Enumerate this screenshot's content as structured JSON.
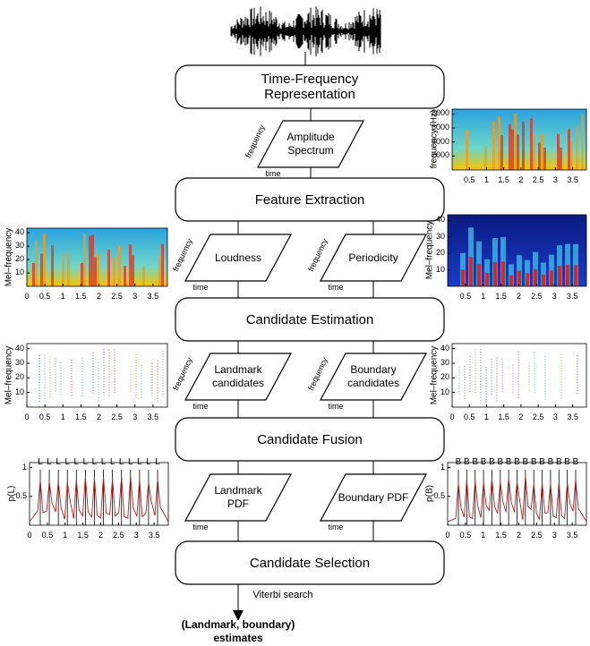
{
  "stages": [
    "Time-Frequency Representation",
    "Feature Extraction",
    "Candidate Estimation",
    "Candidate Fusion",
    "Candidate Selection"
  ],
  "features": [
    [
      {
        "label": "Amplitude Spectrum",
        "y_axis": "frequency",
        "x_axis": "time"
      }
    ],
    [
      {
        "label": "Loudness",
        "y_axis": "frequency",
        "x_axis": "time"
      },
      {
        "label": "Periodicity",
        "y_axis": "frequency",
        "x_axis": "time"
      }
    ],
    [
      {
        "label": "Landmark candidates",
        "y_axis": "frequency",
        "x_axis": "time"
      },
      {
        "label": "Boundary candidates",
        "y_axis": "frequency",
        "x_axis": "time"
      }
    ],
    [
      {
        "label": "Landmark PDF",
        "x_axis": "time"
      },
      {
        "label": "Boundary PDF",
        "x_axis": "time"
      }
    ]
  ],
  "plots": [
    {
      "kind": "spectrogram",
      "y_label": "frequency (Hz)",
      "yticks": [
        2000,
        4000,
        6000,
        8000
      ],
      "xticks": [
        0.5,
        1,
        1.5,
        2,
        2.5,
        3,
        3.5
      ]
    },
    {
      "kind": "spectrogram",
      "y_label": "Mel–frequency",
      "yticks": [
        10,
        20,
        30,
        40
      ],
      "xticks": [
        0,
        0.5,
        1,
        1.5,
        2,
        2.5,
        3,
        3.5
      ]
    },
    {
      "kind": "periodicity",
      "y_label": "Mel–frequency",
      "yticks": [
        10,
        20,
        30,
        40
      ],
      "xticks": [
        0.5,
        1,
        1.5,
        2,
        2.5,
        3,
        3.5
      ]
    },
    {
      "kind": "sparse",
      "y_label": "Mel–frequency",
      "yticks": [
        10,
        20,
        30,
        40
      ],
      "xticks": [
        0,
        0.5,
        1,
        1.5,
        2,
        2.5,
        3,
        3.5
      ]
    },
    {
      "kind": "sparse",
      "y_label": "Mel–frequency",
      "yticks": [
        10,
        20,
        30,
        40
      ],
      "xticks": [
        0,
        0.5,
        1,
        1.5,
        2,
        2.5,
        3,
        3.5
      ]
    },
    {
      "kind": "pdf",
      "y_label": "p(L)",
      "yticks": [
        0.5,
        1
      ],
      "xticks": [
        0,
        0.5,
        1,
        1.5,
        2,
        2.5,
        3,
        3.5
      ],
      "markers": [
        "L",
        "L",
        "L",
        "L",
        "L",
        "L",
        "L",
        "L",
        "L",
        "L",
        "L",
        "L",
        "L",
        "L"
      ]
    },
    {
      "kind": "pdf",
      "y_label": "p(B)",
      "yticks": [
        0.5,
        1
      ],
      "xticks": [
        0,
        0.5,
        1,
        1.5,
        2,
        2.5,
        3,
        3.5
      ],
      "markers": [
        "B",
        "B",
        "B",
        "B",
        "B",
        "B",
        "B",
        "B",
        "B",
        "B",
        "B",
        "B",
        "B",
        "B",
        "B"
      ]
    }
  ],
  "search_label": "Viterbi search",
  "result": [
    "(Landmark, boundary)",
    "estimates"
  ]
}
